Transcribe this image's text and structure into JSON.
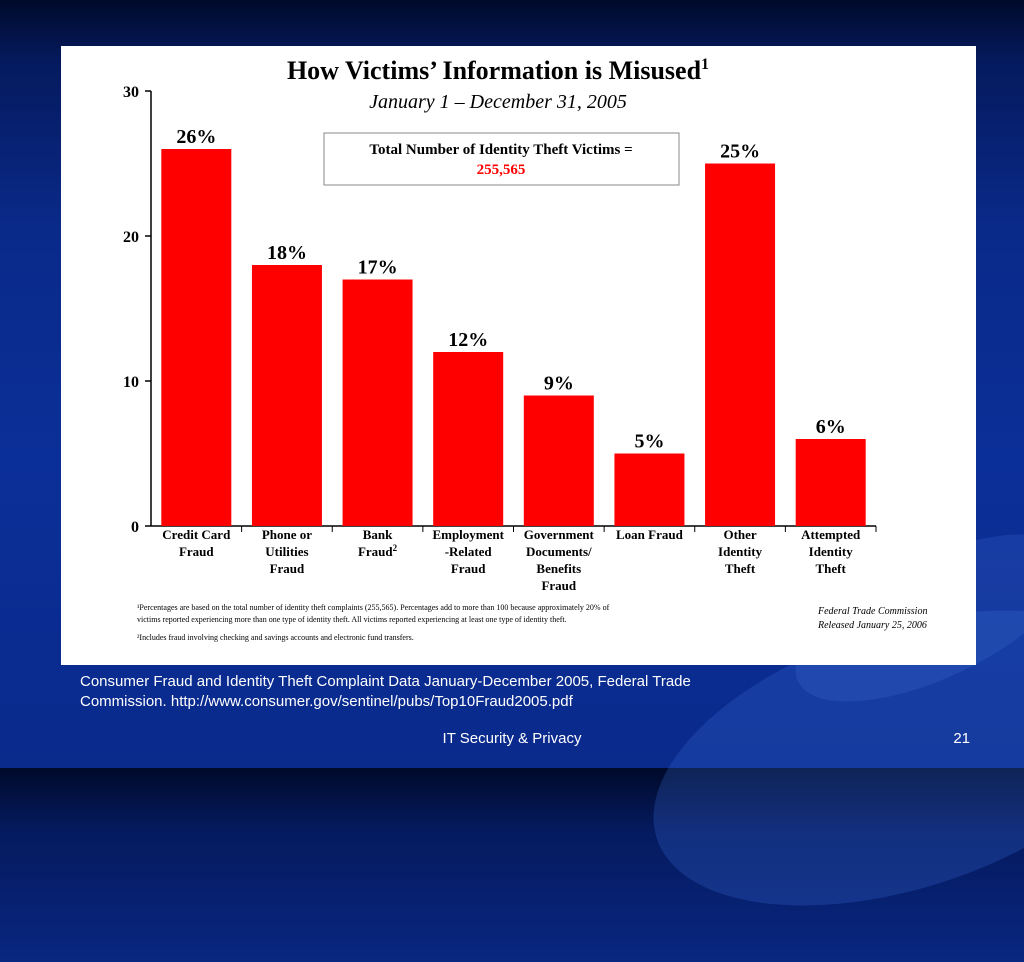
{
  "slide": {
    "caption_line1": "Consumer Fraud and Identity Theft Complaint Data January-December 2005, Federal Trade",
    "caption_line2": "Commission. http://www.consumer.gov/sentinel/pubs/Top10Fraud2005.pdf",
    "footer_title": "IT Security & Privacy",
    "page_number": "21"
  },
  "chart_data": {
    "type": "bar",
    "title": "How Victims’ Information is Misused",
    "title_superscript": "1",
    "subtitle": "January 1 – December 31, 2005",
    "ylim": [
      0,
      30
    ],
    "yticks": [
      0,
      10,
      20,
      30
    ],
    "grid": false,
    "bar_color": "#ff0000",
    "categories": [
      {
        "lines": [
          "Credit Card",
          "Fraud"
        ],
        "sup": ""
      },
      {
        "lines": [
          "Phone or",
          "Utilities",
          "Fraud"
        ],
        "sup": ""
      },
      {
        "lines": [
          "Bank",
          "Fraud"
        ],
        "sup": "2"
      },
      {
        "lines": [
          "Employment",
          "-Related",
          "Fraud"
        ],
        "sup": ""
      },
      {
        "lines": [
          "Government",
          "Documents/",
          "Benefits",
          "Fraud"
        ],
        "sup": ""
      },
      {
        "lines": [
          "Loan Fraud"
        ],
        "sup": ""
      },
      {
        "lines": [
          "Other",
          "Identity",
          "Theft"
        ],
        "sup": ""
      },
      {
        "lines": [
          "Attempted",
          "Identity",
          "Theft"
        ],
        "sup": ""
      }
    ],
    "values": [
      26,
      18,
      17,
      12,
      9,
      5,
      25,
      6
    ],
    "data_labels": [
      "26%",
      "18%",
      "17%",
      "12%",
      "9%",
      "5%",
      "25%",
      "6%"
    ],
    "total_box": {
      "label": "Total Number of Identity Theft Victims =",
      "value": "255,565",
      "value_color": "#ff0000"
    },
    "footnotes": [
      "¹Percentages are based on the total number of identity theft complaints (255,565).  Percentages add to more than 100 because approximately 20% of",
      "victims reported experiencing more than one type of identity theft.  All victims reported experiencing at least one type of identity theft.",
      "²Includes fraud involving checking and savings accounts and electronic fund transfers."
    ],
    "source_lines": [
      "Federal Trade Commission",
      "Released January 25, 2006"
    ]
  }
}
